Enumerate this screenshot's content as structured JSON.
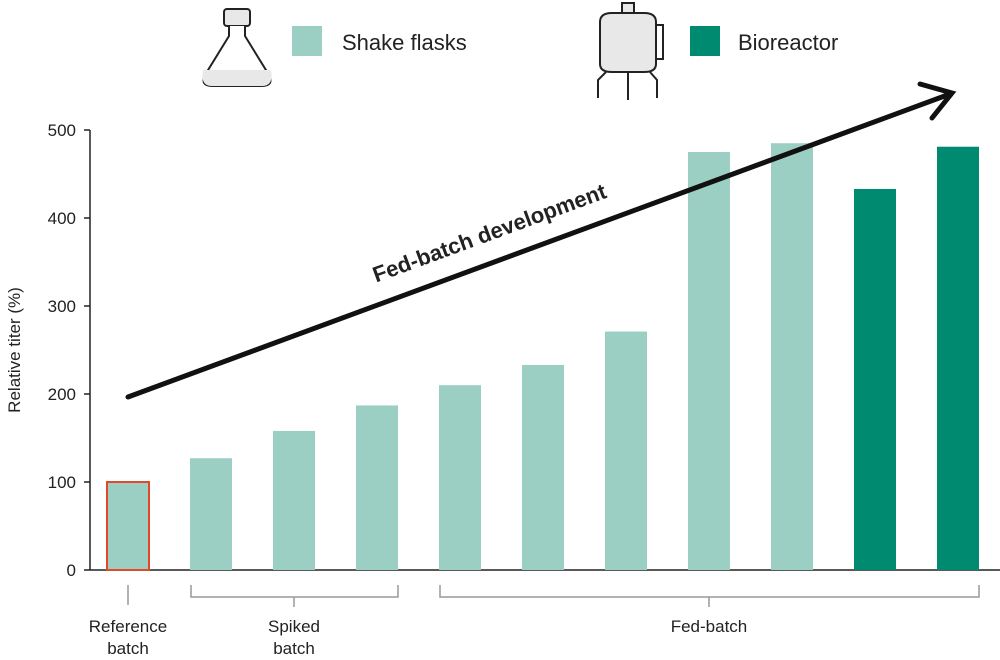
{
  "chart_data": {
    "type": "bar",
    "ylabel": "Relative titer (%)",
    "ylim": [
      0,
      500
    ],
    "yticks": [
      0,
      100,
      200,
      300,
      400,
      500
    ],
    "grid": false,
    "legend_placement": "top",
    "legend": [
      {
        "name": "Shake flasks",
        "color": "#9bcfc4",
        "icon": "shake-flask-icon"
      },
      {
        "name": "Bioreactor",
        "color": "#008a70",
        "icon": "bioreactor-icon"
      }
    ],
    "values": [
      100,
      127,
      158,
      187,
      210,
      233,
      271,
      475,
      485,
      433,
      481
    ],
    "series_of_bar": [
      "Shake flasks",
      "Shake flasks",
      "Shake flasks",
      "Shake flasks",
      "Shake flasks",
      "Shake flasks",
      "Shake flasks",
      "Shake flasks",
      "Shake flasks",
      "Bioreactor",
      "Bioreactor"
    ],
    "reference_outline_color": "#e04a2a",
    "groups": [
      {
        "label_lines": [
          "Reference",
          "batch"
        ],
        "bars": [
          0,
          0
        ]
      },
      {
        "label_lines": [
          "Spiked",
          "batch"
        ],
        "bars": [
          1,
          3
        ]
      },
      {
        "label_lines": [
          "Fed-batch"
        ],
        "bars": [
          4,
          10
        ]
      }
    ],
    "annotation": "Fed-batch development"
  }
}
